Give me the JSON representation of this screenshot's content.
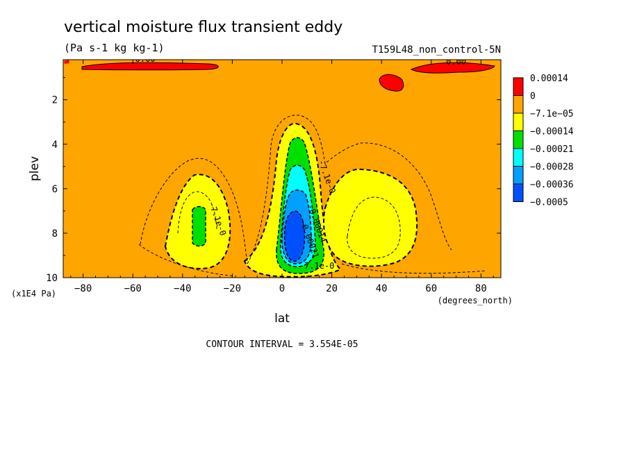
{
  "chart_data": {
    "type": "heatmap",
    "title": "vertical moisture flux transient eddy",
    "subtitle": "(Pa s-1 kg kg-1)",
    "dataset": "T159L48_non_control-5N",
    "xlabel": "lat",
    "x_units": "(degrees_north)",
    "ylabel": "plev",
    "y_units": "(x1E4 Pa)",
    "xlim": [
      -88,
      88
    ],
    "ylim": [
      10,
      0.2
    ],
    "xticks": [
      -80,
      -60,
      -40,
      -20,
      0,
      20,
      40,
      60,
      80
    ],
    "yticks": [
      2,
      4,
      6,
      8,
      10
    ],
    "grid": false,
    "legend": "right",
    "contour_interval": "CONTOUR INTERVAL = 3.554E-05",
    "legend_levels": [
      "0.00014",
      "0",
      "−7.1e−05",
      "−0.00014",
      "−0.00021",
      "−0.00028",
      "−0.00036",
      "−0.0005"
    ],
    "legend_colors": [
      "#ff0000",
      "#ffa500",
      "#ffff00",
      "#00e000",
      "#00ffff",
      "#00a0ff",
      "#0050ff"
    ],
    "regions": [
      {
        "name": "positive_top_band_west",
        "level": "0 to 0.00014",
        "lat_range": [
          -80,
          -15
        ],
        "plev": 0.2
      },
      {
        "name": "positive_cell_mid",
        "level": "0 to 0.00014",
        "lat": 45,
        "plev": 0.9
      },
      {
        "name": "positive_top_band_east",
        "level": "0 to 0.00014",
        "lat_range": [
          58,
          85
        ],
        "plev": 0.3
      },
      {
        "name": "min_sh",
        "level": "-0.00021 to -0.00014",
        "lat": -35,
        "plev": 7.4
      },
      {
        "name": "min_eq",
        "level": "-0.0005 to -0.00036",
        "lat": 6,
        "plev": 8.5
      },
      {
        "name": "min_nh",
        "level": "-0.00014 to -7.1e-05",
        "lat": 40,
        "plev": 7.5
      }
    ],
    "contour_labels": [
      {
        "text": "0.00",
        "lat": -55,
        "plev": 0.3
      },
      {
        "text": "0.00",
        "lat": 70,
        "plev": 0.4
      },
      {
        "text": "-7.1e-0",
        "lat": -27,
        "plev": 7.4
      },
      {
        "text": "-7.1e-0",
        "lat": 17,
        "plev": 5.5
      },
      {
        "text": "-0.00014",
        "lat": 13,
        "plev": 7.6
      },
      {
        "text": "-0.00021",
        "lat": 10,
        "plev": 8.3
      },
      {
        "text": "-7.1e-0",
        "lat": 14,
        "plev": 9.6
      }
    ]
  }
}
